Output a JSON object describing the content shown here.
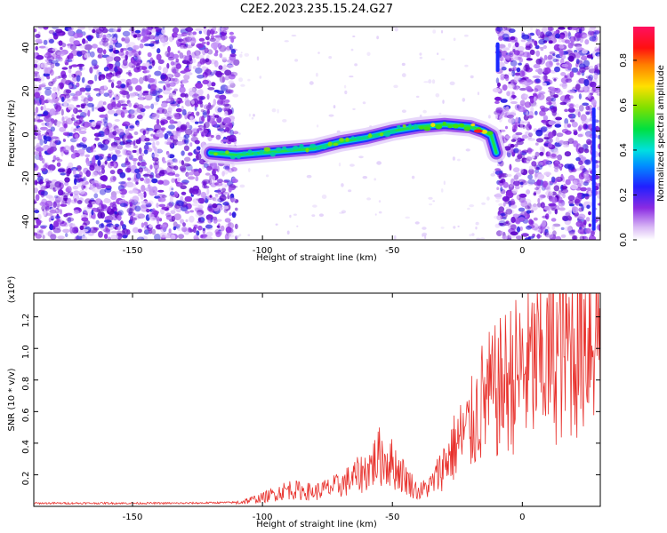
{
  "chart_data": [
    {
      "type": "heatmap",
      "title": "C2E2.2023.235.15.24.G27",
      "xlabel": "Height of straight line (km)",
      "ylabel": "Frequency (Hz)",
      "xlim": [
        -188,
        30
      ],
      "ylim": [
        -50,
        48
      ],
      "x_ticks": [
        -150,
        -100,
        -50,
        0
      ],
      "y_ticks": [
        -40,
        -20,
        0,
        20,
        40
      ],
      "colorbar": {
        "label": "Normalized spectral amplitude",
        "range": [
          0,
          0.95
        ],
        "ticks": [
          0.0,
          0.2,
          0.4,
          0.6,
          0.8
        ]
      },
      "noise_regions": [
        {
          "x_range": [
            -188,
            -110
          ],
          "description_level": "high"
        },
        {
          "x_range": [
            -10,
            30
          ],
          "description_level": "high"
        }
      ],
      "signal_track": {
        "x": [
          -120,
          -110,
          -100,
          -90,
          -80,
          -70,
          -60,
          -50,
          -40,
          -30,
          -20,
          -15,
          -12,
          -10
        ],
        "frequency": [
          -10,
          -11,
          -10,
          -9,
          -8,
          -5,
          -3,
          0,
          2,
          3,
          2,
          0,
          -2,
          -10
        ]
      },
      "grid": false
    },
    {
      "type": "line",
      "title": "",
      "xlabel": "Height of straight line (km)",
      "ylabel": "SNR (10 * v/v)",
      "y_multiplier_label": "(x10⁴)",
      "xlim": [
        -188,
        30
      ],
      "ylim": [
        0,
        1.35
      ],
      "x_ticks": [
        -150,
        -100,
        -50,
        0
      ],
      "y_ticks": [
        0.2,
        0.4,
        0.6,
        0.8,
        1.0,
        1.2
      ],
      "line_color": "#e8312c",
      "series": [
        {
          "x": [
            -188,
            -160,
            -130,
            -110,
            -100,
            -90,
            -80,
            -70,
            -60,
            -55,
            -50,
            -45,
            -40,
            -35,
            -30,
            -25,
            -20,
            -15,
            -10,
            -5,
            0,
            5,
            10,
            15,
            20,
            25,
            30
          ],
          "values": [
            0.02,
            0.02,
            0.02,
            0.025,
            0.06,
            0.12,
            0.1,
            0.15,
            0.25,
            0.35,
            0.3,
            0.2,
            0.1,
            0.15,
            0.3,
            0.45,
            0.55,
            0.75,
            0.8,
            0.9,
            0.95,
            1.0,
            1.05,
            1.1,
            1.15,
            1.25,
            1.3
          ]
        }
      ],
      "grid": false
    }
  ]
}
